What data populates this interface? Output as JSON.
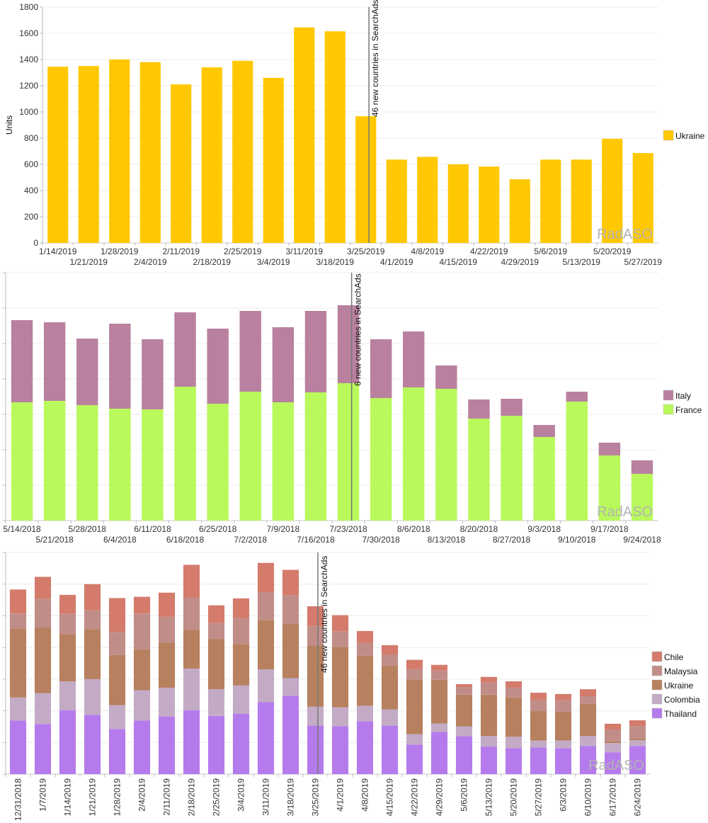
{
  "chart_data": [
    {
      "id": "chart-ukraine",
      "type": "bar",
      "title": "",
      "xlabel": "",
      "ylabel": "Units",
      "ylim": [
        0,
        1800
      ],
      "yticks": [
        0,
        200,
        400,
        600,
        800,
        1000,
        1200,
        1400,
        1600,
        1800
      ],
      "grid": true,
      "legend_position": "right",
      "watermark": "RadASO",
      "annotation": {
        "label": "46 new countries in SearchAds",
        "at_category": "3/25/2019"
      },
      "categories": [
        "1/14/2019",
        "1/21/2019",
        "1/28/2019",
        "2/4/2019",
        "2/11/2019",
        "2/18/2019",
        "2/25/2019",
        "3/4/2019",
        "3/11/2019",
        "3/18/2019",
        "3/25/2019",
        "4/1/2019",
        "4/8/2019",
        "4/15/2019",
        "4/22/2019",
        "4/29/2019",
        "5/6/2019",
        "5/13/2019",
        "5/20/2019",
        "5/27/2019"
      ],
      "series": [
        {
          "name": "Ukraine",
          "color": "#ffc800",
          "values": [
            1345,
            1350,
            1400,
            1380,
            1210,
            1340,
            1390,
            1260,
            1645,
            1615,
            967,
            636,
            657,
            600,
            583,
            486,
            636,
            636,
            795,
            686
          ]
        }
      ]
    },
    {
      "id": "chart-italy-france",
      "type": "bar",
      "stacked": true,
      "title": "",
      "xlabel": "",
      "ylabel": "",
      "y_units_note": "y-axis labels not visible; values in gridline units",
      "ylim": [
        0,
        7
      ],
      "grid": true,
      "legend_position": "right",
      "watermark": "RadASO",
      "annotation": {
        "label": "6 new countries in SearchAds",
        "at_category": "7/23/2018"
      },
      "categories": [
        "5/14/2018",
        "5/21/2018",
        "5/28/2018",
        "6/4/2018",
        "6/11/2018",
        "6/18/2018",
        "6/25/2018",
        "7/2/2018",
        "7/9/2018",
        "7/16/2018",
        "7/23/2018",
        "7/30/2018",
        "8/6/2018",
        "8/13/2018",
        "8/20/2018",
        "8/27/2018",
        "9/3/2018",
        "9/10/2018",
        "9/17/2018",
        "9/24/2018"
      ],
      "series": [
        {
          "name": "France",
          "color": "#b9f95c",
          "values": [
            3.34,
            3.38,
            3.26,
            3.16,
            3.14,
            3.78,
            3.3,
            3.64,
            3.34,
            3.62,
            3.88,
            3.46,
            3.76,
            3.72,
            2.88,
            2.96,
            2.36,
            3.36,
            1.84,
            1.32
          ]
        },
        {
          "name": "Italy",
          "color": "#b9819f",
          "values": [
            2.32,
            2.22,
            1.88,
            2.4,
            1.98,
            2.1,
            2.12,
            2.28,
            2.12,
            2.3,
            2.2,
            1.66,
            1.58,
            0.66,
            0.54,
            0.48,
            0.34,
            0.28,
            0.36,
            0.38
          ]
        }
      ],
      "legend_order": [
        "Italy",
        "France"
      ]
    },
    {
      "id": "chart-five-countries",
      "type": "bar",
      "stacked": true,
      "title": "",
      "xlabel": "",
      "ylabel": "",
      "y_units_note": "y-axis labels not visible; values in gridline units",
      "ylim": [
        0,
        7
      ],
      "grid": false,
      "legend_position": "right",
      "watermark": "RadASO",
      "annotation": {
        "label": "46 new countries in SearchAds",
        "at_category": "3/25/2019"
      },
      "categories": [
        "12/31/2018",
        "1/7/2019",
        "1/14/2019",
        "1/21/2019",
        "1/28/2019",
        "2/4/2019",
        "2/11/2019",
        "2/18/2019",
        "2/25/2019",
        "3/4/2019",
        "3/11/2019",
        "3/18/2019",
        "3/25/2019",
        "4/1/2019",
        "4/8/2019",
        "4/15/2019",
        "4/22/2019",
        "4/29/2019",
        "5/6/2019",
        "5/13/2019",
        "5/20/2019",
        "5/27/2019",
        "6/3/2019",
        "6/10/2019",
        "6/17/2019",
        "6/24/2019"
      ],
      "series": [
        {
          "name": "Thailand",
          "color": "#b57bec",
          "values": [
            1.69,
            1.58,
            2.02,
            1.87,
            1.42,
            1.69,
            1.82,
            2.02,
            1.84,
            1.91,
            2.27,
            2.47,
            1.53,
            1.51,
            1.67,
            1.53,
            0.93,
            1.33,
            1.2,
            0.87,
            0.82,
            0.84,
            0.82,
            0.89,
            0.69,
            0.89
          ]
        },
        {
          "name": "Colombia",
          "color": "#c3abc6",
          "values": [
            0.73,
            0.98,
            0.91,
            1.13,
            0.76,
            0.96,
            0.91,
            1.31,
            0.84,
            0.89,
            1.04,
            0.56,
            0.6,
            0.6,
            0.49,
            0.51,
            0.33,
            0.27,
            0.31,
            0.33,
            0.36,
            0.22,
            0.24,
            0.31,
            0.29,
            0.18
          ]
        },
        {
          "name": "Ukraine",
          "color": "#b7805f",
          "values": [
            2.18,
            2.07,
            1.49,
            1.58,
            1.58,
            1.29,
            1.42,
            1.22,
            1.58,
            1.31,
            1.56,
            1.71,
            1.93,
            1.91,
            1.58,
            1.38,
            1.73,
            1.38,
            1.0,
            1.31,
            1.24,
            0.93,
            0.91,
            1.02,
            0.05,
            0.05
          ]
        },
        {
          "name": "Malaysia",
          "color": "#c18d88",
          "values": [
            0.47,
            0.91,
            0.64,
            0.6,
            0.73,
            1.13,
            0.82,
            1.02,
            0.51,
            0.82,
            0.87,
            0.91,
            0.62,
            0.49,
            0.4,
            0.36,
            0.33,
            0.29,
            0.24,
            0.38,
            0.31,
            0.36,
            0.36,
            0.24,
            0.38,
            0.4
          ]
        },
        {
          "name": "Chile",
          "color": "#d47b6c",
          "values": [
            0.76,
            0.69,
            0.6,
            0.82,
            1.07,
            0.53,
            0.76,
            1.04,
            0.56,
            0.62,
            0.93,
            0.8,
            0.62,
            0.51,
            0.38,
            0.29,
            0.29,
            0.18,
            0.09,
            0.18,
            0.2,
            0.22,
            0.2,
            0.22,
            0.18,
            0.18
          ]
        }
      ],
      "legend_order": [
        "Chile",
        "Malaysia",
        "Ukraine",
        "Colombia",
        "Thailand"
      ]
    }
  ]
}
